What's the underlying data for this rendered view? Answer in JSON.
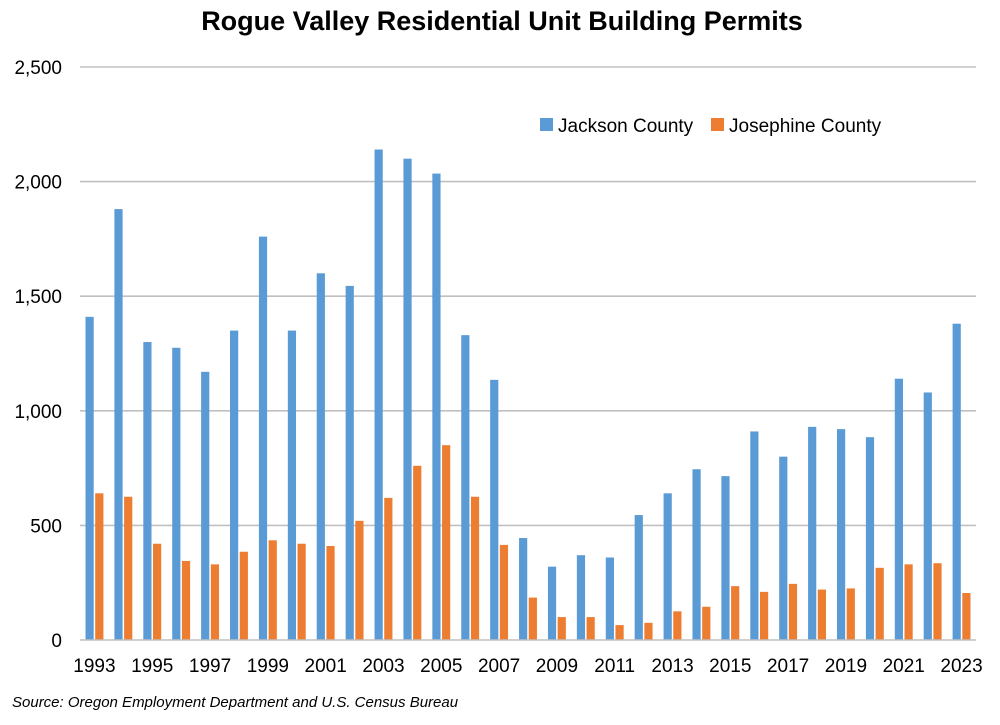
{
  "chart_data": {
    "type": "bar",
    "title": "Rogue Valley Residential Unit Building Permits",
    "source": "Source: Oregon Employment Department and U.S. Census Bureau",
    "xlabel": "",
    "ylabel": "",
    "ylim": [
      0,
      2500
    ],
    "yticks": [
      0,
      500,
      1000,
      1500,
      2000,
      2500
    ],
    "ytick_labels": [
      "0",
      "500",
      "1,000",
      "1,500",
      "2,000",
      "2,500"
    ],
    "grid": true,
    "legend_position": "top-right",
    "categories": [
      "1993",
      "1994",
      "1995",
      "1996",
      "1997",
      "1998",
      "1999",
      "2000",
      "2001",
      "2002",
      "2003",
      "2004",
      "2005",
      "2006",
      "2007",
      "2008",
      "2009",
      "2010",
      "2011",
      "2012",
      "2013",
      "2014",
      "2015",
      "2016",
      "2017",
      "2018",
      "2019",
      "2020",
      "2021",
      "2022",
      "2023"
    ],
    "xtick_labels": [
      "1993",
      "1995",
      "1997",
      "1999",
      "2001",
      "2003",
      "2005",
      "2007",
      "2009",
      "2011",
      "2013",
      "2015",
      "2017",
      "2019",
      "2021",
      "2023"
    ],
    "series": [
      {
        "name": "Jackson County",
        "color": "#5B9BD5",
        "values": [
          1410,
          1880,
          1300,
          1275,
          1170,
          1350,
          1760,
          1350,
          1600,
          1545,
          2140,
          2100,
          2035,
          1330,
          1135,
          445,
          320,
          370,
          360,
          545,
          640,
          745,
          715,
          910,
          800,
          930,
          920,
          885,
          1140,
          1080,
          1380
        ]
      },
      {
        "name": "Josephine County",
        "color": "#ED7D31",
        "values": [
          640,
          625,
          420,
          345,
          330,
          385,
          435,
          420,
          410,
          520,
          620,
          760,
          850,
          625,
          415,
          185,
          100,
          100,
          65,
          75,
          125,
          145,
          235,
          210,
          245,
          220,
          225,
          315,
          330,
          335,
          205
        ]
      }
    ]
  }
}
